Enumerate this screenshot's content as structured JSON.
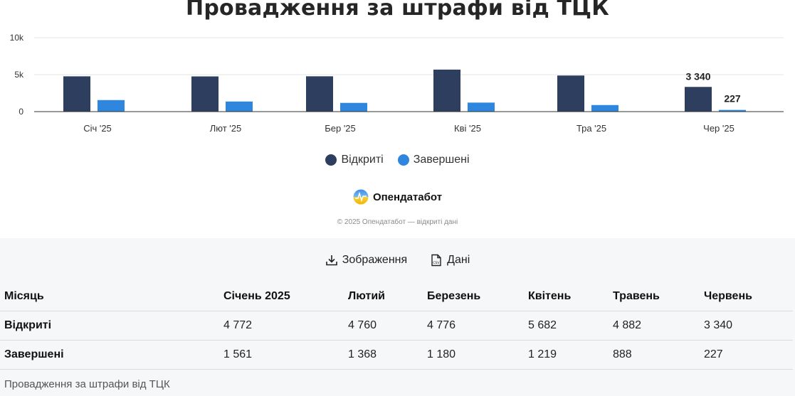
{
  "chart_data": {
    "type": "bar",
    "title": "Провадження за штрафи від ТЦК",
    "categories": [
      "Січ '25",
      "Лют '25",
      "Бер '25",
      "Кві '25",
      "Тра '25",
      "Чер '25"
    ],
    "series": [
      {
        "name": "Відкриті",
        "color": "#2d3e5e",
        "values": [
          4772,
          4760,
          4776,
          5682,
          4882,
          3340
        ]
      },
      {
        "name": "Завершені",
        "color": "#2e86de",
        "values": [
          1561,
          1368,
          1180,
          1219,
          888,
          227
        ]
      }
    ],
    "data_labels": [
      "3 340",
      "227"
    ],
    "yticks": [
      "0",
      "5k",
      "10k"
    ],
    "ylim": [
      0,
      10000
    ],
    "grid": true,
    "legend_position": "bottom"
  },
  "brand": {
    "name": "Опендатабот",
    "copyright": "© 2025 Опендатабот — відкриті дані"
  },
  "actions": {
    "image_label": "Зображення",
    "data_label": "Дані"
  },
  "table": {
    "headers": [
      "Місяць",
      "Січень 2025",
      "Лютий",
      "Березень",
      "Квітень",
      "Травень",
      "Червень"
    ],
    "rows": [
      [
        "Відкриті",
        "4 772",
        "4 760",
        "4 776",
        "5 682",
        "4 882",
        "3 340"
      ],
      [
        "Завершені",
        "1 561",
        "1 368",
        "1 180",
        "1 219",
        "888",
        "227"
      ]
    ],
    "caption": "Провадження за штрафи від ТЦК"
  }
}
